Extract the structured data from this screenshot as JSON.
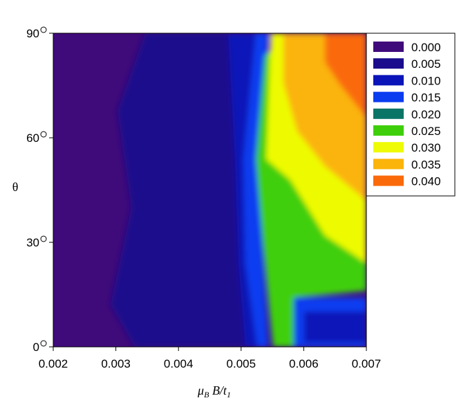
{
  "chart_data": {
    "type": "heatmap",
    "subtype": "filled-contour",
    "xlabel": {
      "mu": "μ",
      "mu_sub": "B",
      "mid": " B/t",
      "t_sub": "1"
    },
    "ylabel": "θ",
    "xlim": [
      0.002,
      0.007
    ],
    "ylim": [
      0,
      90
    ],
    "x_ticks": [
      0.002,
      0.003,
      0.004,
      0.005,
      0.006,
      0.007
    ],
    "x_tick_labels": [
      "0.002",
      "0.003",
      "0.004",
      "0.005",
      "0.006",
      "0.007"
    ],
    "y_ticks": [
      0,
      30,
      60,
      90
    ],
    "y_tick_labels": [
      "0",
      "30",
      "60",
      "90"
    ],
    "y_tick_degree_symbol": true,
    "legend_position": "top-right",
    "levels": [
      {
        "label": "0.000",
        "value": 0.0,
        "color": "#3f0a7a"
      },
      {
        "label": "0.005",
        "value": 0.005,
        "color": "#1a0c8c"
      },
      {
        "label": "0.010",
        "value": 0.01,
        "color": "#0b14b8"
      },
      {
        "label": "0.015",
        "value": 0.015,
        "color": "#0a3cf0"
      },
      {
        "label": "0.020",
        "value": 0.02,
        "color": "#0a7566"
      },
      {
        "label": "0.025",
        "value": 0.025,
        "color": "#3fcf0a"
      },
      {
        "label": "0.030",
        "value": 0.03,
        "color": "#eefb04"
      },
      {
        "label": "0.035",
        "value": 0.035,
        "color": "#fbb40a"
      },
      {
        "label": "0.040",
        "value": 0.04,
        "color": "#fa6a0a"
      }
    ],
    "regions": [
      {
        "level": "0.000",
        "x": [
          0.002,
          0.0035
        ],
        "y": [
          0,
          90
        ]
      },
      {
        "level": "0.005",
        "x": [
          0.0035,
          0.005
        ],
        "y": [
          0,
          90
        ]
      },
      {
        "level": "0.010",
        "x": [
          0.005,
          0.0053
        ],
        "y": [
          0,
          90
        ]
      },
      {
        "level": "0.015",
        "x": [
          0.0053,
          0.0054
        ],
        "y": [
          0,
          90
        ]
      },
      {
        "level": "0.020",
        "x": [
          0.0054,
          0.0055
        ],
        "y": [
          20,
          60
        ]
      },
      {
        "level": "0.025",
        "x": [
          0.0055,
          0.0058
        ],
        "y": [
          0,
          50
        ]
      },
      {
        "level": "0.030",
        "x": [
          0.0055,
          0.007
        ],
        "y": [
          15,
          90
        ]
      },
      {
        "level": "0.035",
        "x": [
          0.0057,
          0.007
        ],
        "y": [
          40,
          90
        ]
      },
      {
        "level": "0.040",
        "x": [
          0.0065,
          0.007
        ],
        "y": [
          70,
          90
        ]
      },
      {
        "level": "0.015",
        "x": [
          0.0058,
          0.007
        ],
        "y": [
          0,
          15
        ]
      }
    ]
  }
}
